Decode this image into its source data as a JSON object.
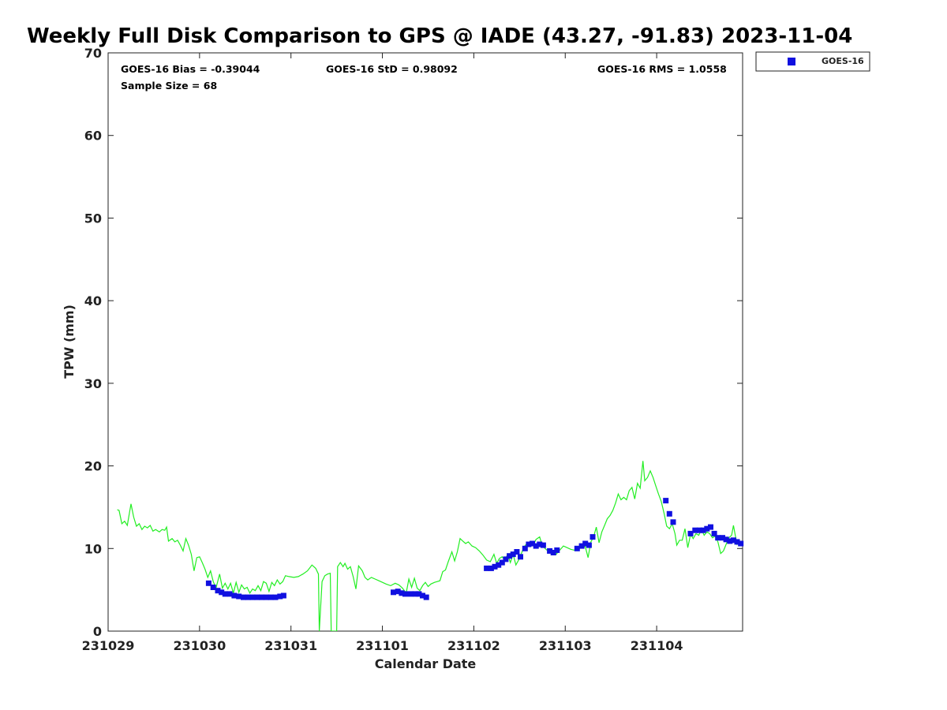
{
  "chart_data": {
    "type": "scatter",
    "title": "Weekly Full Disk Comparison to GPS @ IADE (43.27, -91.83) 2023-11-04",
    "xlabel": "Calendar Date",
    "ylabel": "TPW (mm)",
    "xlim": [
      0,
      6.94
    ],
    "ylim": [
      0,
      70
    ],
    "x_unit": "days",
    "yticks": [
      0,
      10,
      20,
      30,
      40,
      50,
      60,
      70
    ],
    "xticks": [
      {
        "value": 0,
        "label": "231029"
      },
      {
        "value": 1,
        "label": "231030"
      },
      {
        "value": 2,
        "label": "231031"
      },
      {
        "value": 3,
        "label": "231101"
      },
      {
        "value": 4,
        "label": "231102"
      },
      {
        "value": 5,
        "label": "231103"
      },
      {
        "value": 6,
        "label": "231104"
      }
    ],
    "stats": {
      "bias": "GOES-16 Bias = -0.39044",
      "std": "GOES-16 StD = 0.98092",
      "rms": "GOES-16 RMS = 1.0558",
      "sample": "Sample Size = 68"
    },
    "legend": {
      "position": "top-right-outside",
      "entries": [
        "GOES-16"
      ]
    },
    "grid": false,
    "series": [
      {
        "name": "GOES-16",
        "kind": "scatter",
        "color": "#1010e0",
        "points": [
          [
            1.1,
            5.8
          ],
          [
            1.15,
            5.3
          ],
          [
            1.2,
            4.9
          ],
          [
            1.24,
            4.7
          ],
          [
            1.28,
            4.5
          ],
          [
            1.33,
            4.5
          ],
          [
            1.38,
            4.3
          ],
          [
            1.43,
            4.2
          ],
          [
            1.48,
            4.1
          ],
          [
            1.53,
            4.1
          ],
          [
            1.58,
            4.1
          ],
          [
            1.63,
            4.1
          ],
          [
            1.68,
            4.1
          ],
          [
            1.73,
            4.1
          ],
          [
            1.78,
            4.1
          ],
          [
            1.83,
            4.1
          ],
          [
            1.88,
            4.2
          ],
          [
            1.92,
            4.3
          ],
          [
            3.12,
            4.7
          ],
          [
            3.17,
            4.8
          ],
          [
            3.21,
            4.6
          ],
          [
            3.25,
            4.5
          ],
          [
            3.31,
            4.5
          ],
          [
            3.36,
            4.5
          ],
          [
            3.4,
            4.5
          ],
          [
            3.44,
            4.3
          ],
          [
            3.48,
            4.1
          ],
          [
            4.14,
            7.6
          ],
          [
            4.19,
            7.6
          ],
          [
            4.23,
            7.8
          ],
          [
            4.27,
            8.0
          ],
          [
            4.31,
            8.3
          ],
          [
            4.35,
            8.7
          ],
          [
            4.39,
            9.1
          ],
          [
            4.43,
            9.3
          ],
          [
            4.47,
            9.6
          ],
          [
            4.51,
            9.0
          ],
          [
            4.56,
            10.0
          ],
          [
            4.6,
            10.5
          ],
          [
            4.64,
            10.6
          ],
          [
            4.68,
            10.3
          ],
          [
            4.72,
            10.5
          ],
          [
            4.76,
            10.4
          ],
          [
            4.83,
            9.7
          ],
          [
            4.87,
            9.5
          ],
          [
            4.91,
            9.8
          ],
          [
            5.13,
            10.0
          ],
          [
            5.18,
            10.3
          ],
          [
            5.22,
            10.6
          ],
          [
            5.26,
            10.4
          ],
          [
            5.3,
            11.4
          ],
          [
            6.1,
            15.8
          ],
          [
            6.14,
            14.2
          ],
          [
            6.18,
            13.2
          ],
          [
            6.37,
            11.8
          ],
          [
            6.42,
            12.2
          ],
          [
            6.47,
            12.2
          ],
          [
            6.51,
            12.2
          ],
          [
            6.55,
            12.4
          ],
          [
            6.59,
            12.6
          ],
          [
            6.63,
            11.8
          ],
          [
            6.67,
            11.3
          ],
          [
            6.72,
            11.3
          ],
          [
            6.76,
            11.1
          ],
          [
            6.8,
            10.9
          ],
          [
            6.84,
            11.0
          ],
          [
            6.88,
            10.8
          ],
          [
            6.92,
            10.6
          ]
        ]
      },
      {
        "name": "",
        "kind": "line",
        "color": "#22ee22",
        "points": [
          [
            0.1,
            14.7
          ],
          [
            0.12,
            14.6
          ],
          [
            0.15,
            13.0
          ],
          [
            0.18,
            13.3
          ],
          [
            0.21,
            12.8
          ],
          [
            0.25,
            15.4
          ],
          [
            0.28,
            13.8
          ],
          [
            0.31,
            12.7
          ],
          [
            0.34,
            13.0
          ],
          [
            0.37,
            12.3
          ],
          [
            0.4,
            12.7
          ],
          [
            0.43,
            12.5
          ],
          [
            0.46,
            12.8
          ],
          [
            0.49,
            12.1
          ],
          [
            0.52,
            12.3
          ],
          [
            0.56,
            12.0
          ],
          [
            0.59,
            12.3
          ],
          [
            0.62,
            12.2
          ],
          [
            0.64,
            12.6
          ],
          [
            0.66,
            10.9
          ],
          [
            0.7,
            11.2
          ],
          [
            0.73,
            10.8
          ],
          [
            0.76,
            11.0
          ],
          [
            0.79,
            10.4
          ],
          [
            0.82,
            9.7
          ],
          [
            0.85,
            11.2
          ],
          [
            0.88,
            10.4
          ],
          [
            0.91,
            9.3
          ],
          [
            0.94,
            7.3
          ],
          [
            0.97,
            8.9
          ],
          [
            1.0,
            9.0
          ],
          [
            1.03,
            8.3
          ],
          [
            1.06,
            7.5
          ],
          [
            1.09,
            6.5
          ],
          [
            1.12,
            7.3
          ],
          [
            1.15,
            6.0
          ],
          [
            1.18,
            5.2
          ],
          [
            1.22,
            6.9
          ],
          [
            1.25,
            5.2
          ],
          [
            1.28,
            5.8
          ],
          [
            1.31,
            5.1
          ],
          [
            1.34,
            5.8
          ],
          [
            1.37,
            4.6
          ],
          [
            1.4,
            5.9
          ],
          [
            1.43,
            4.7
          ],
          [
            1.46,
            5.6
          ],
          [
            1.49,
            5.1
          ],
          [
            1.52,
            5.3
          ],
          [
            1.55,
            4.6
          ],
          [
            1.58,
            5.1
          ],
          [
            1.61,
            4.9
          ],
          [
            1.64,
            5.5
          ],
          [
            1.67,
            4.9
          ],
          [
            1.7,
            6.0
          ],
          [
            1.73,
            5.8
          ],
          [
            1.76,
            4.8
          ],
          [
            1.79,
            5.9
          ],
          [
            1.82,
            5.5
          ],
          [
            1.85,
            6.2
          ],
          [
            1.88,
            5.7
          ],
          [
            1.91,
            6.0
          ],
          [
            1.94,
            6.7
          ],
          [
            1.98,
            6.6
          ],
          [
            2.03,
            6.5
          ],
          [
            2.08,
            6.6
          ],
          [
            2.13,
            6.9
          ],
          [
            2.18,
            7.3
          ],
          [
            2.23,
            8.0
          ],
          [
            2.27,
            7.6
          ],
          [
            2.3,
            6.9
          ],
          [
            2.31,
            0.0
          ],
          [
            2.34,
            6.0
          ],
          [
            2.37,
            6.7
          ],
          [
            2.4,
            6.9
          ],
          [
            2.43,
            7.0
          ],
          [
            2.44,
            0.0
          ],
          [
            2.5,
            0.0
          ],
          [
            2.51,
            7.8
          ],
          [
            2.54,
            8.3
          ],
          [
            2.57,
            7.8
          ],
          [
            2.59,
            8.2
          ],
          [
            2.62,
            7.5
          ],
          [
            2.65,
            7.8
          ],
          [
            2.68,
            6.6
          ],
          [
            2.71,
            5.1
          ],
          [
            2.74,
            7.9
          ],
          [
            2.78,
            7.3
          ],
          [
            2.81,
            6.5
          ],
          [
            2.84,
            6.2
          ],
          [
            2.88,
            6.5
          ],
          [
            2.92,
            6.3
          ],
          [
            2.96,
            6.1
          ],
          [
            3.0,
            5.9
          ],
          [
            3.04,
            5.7
          ],
          [
            3.09,
            5.5
          ],
          [
            3.14,
            5.8
          ],
          [
            3.18,
            5.6
          ],
          [
            3.22,
            5.2
          ],
          [
            3.26,
            4.6
          ],
          [
            3.29,
            6.3
          ],
          [
            3.32,
            5.3
          ],
          [
            3.35,
            6.4
          ],
          [
            3.38,
            5.2
          ],
          [
            3.41,
            4.9
          ],
          [
            3.44,
            5.5
          ],
          [
            3.47,
            5.9
          ],
          [
            3.5,
            5.4
          ],
          [
            3.53,
            5.7
          ],
          [
            3.57,
            5.9
          ],
          [
            3.6,
            6.0
          ],
          [
            3.63,
            6.1
          ],
          [
            3.66,
            7.2
          ],
          [
            3.69,
            7.4
          ],
          [
            3.72,
            8.4
          ],
          [
            3.76,
            9.6
          ],
          [
            3.79,
            8.5
          ],
          [
            3.82,
            9.6
          ],
          [
            3.85,
            11.2
          ],
          [
            3.88,
            10.9
          ],
          [
            3.91,
            10.6
          ],
          [
            3.94,
            10.8
          ],
          [
            3.98,
            10.3
          ],
          [
            4.02,
            10.1
          ],
          [
            4.06,
            9.7
          ],
          [
            4.1,
            9.2
          ],
          [
            4.14,
            8.6
          ],
          [
            4.18,
            8.4
          ],
          [
            4.22,
            9.3
          ],
          [
            4.25,
            8.2
          ],
          [
            4.28,
            8.8
          ],
          [
            4.31,
            9.0
          ],
          [
            4.34,
            8.6
          ],
          [
            4.37,
            9.3
          ],
          [
            4.4,
            8.3
          ],
          [
            4.43,
            9.3
          ],
          [
            4.46,
            8.0
          ],
          [
            4.49,
            8.6
          ],
          [
            4.52,
            9.4
          ],
          [
            4.55,
            10.2
          ],
          [
            4.58,
            10.6
          ],
          [
            4.62,
            10.7
          ],
          [
            4.65,
            10.4
          ],
          [
            4.68,
            11.1
          ],
          [
            4.72,
            11.4
          ],
          [
            4.75,
            10.3
          ],
          [
            4.78,
            10.0
          ],
          [
            4.82,
            9.6
          ],
          [
            4.86,
            9.7
          ],
          [
            4.9,
            9.3
          ],
          [
            4.94,
            9.8
          ],
          [
            4.98,
            10.3
          ],
          [
            5.02,
            10.1
          ],
          [
            5.06,
            9.9
          ],
          [
            5.1,
            9.8
          ],
          [
            5.14,
            10.1
          ],
          [
            5.18,
            10.4
          ],
          [
            5.22,
            10.2
          ],
          [
            5.25,
            8.9
          ],
          [
            5.28,
            10.8
          ],
          [
            5.31,
            11.4
          ],
          [
            5.34,
            12.6
          ],
          [
            5.37,
            10.7
          ],
          [
            5.4,
            12.0
          ],
          [
            5.43,
            12.8
          ],
          [
            5.46,
            13.6
          ],
          [
            5.49,
            14.0
          ],
          [
            5.52,
            14.6
          ],
          [
            5.55,
            15.5
          ],
          [
            5.58,
            16.6
          ],
          [
            5.61,
            15.9
          ],
          [
            5.64,
            16.2
          ],
          [
            5.67,
            15.9
          ],
          [
            5.7,
            17.0
          ],
          [
            5.73,
            17.4
          ],
          [
            5.76,
            16.0
          ],
          [
            5.79,
            17.9
          ],
          [
            5.82,
            17.3
          ],
          [
            5.85,
            20.6
          ],
          [
            5.87,
            18.2
          ],
          [
            5.9,
            18.6
          ],
          [
            5.93,
            19.4
          ],
          [
            5.96,
            18.6
          ],
          [
            5.99,
            17.6
          ],
          [
            6.02,
            16.6
          ],
          [
            6.05,
            15.7
          ],
          [
            6.08,
            14.3
          ],
          [
            6.11,
            12.7
          ],
          [
            6.14,
            12.4
          ],
          [
            6.17,
            13.0
          ],
          [
            6.2,
            11.8
          ],
          [
            6.22,
            10.4
          ],
          [
            6.25,
            11.0
          ],
          [
            6.28,
            11.0
          ],
          [
            6.31,
            12.4
          ],
          [
            6.34,
            10.1
          ],
          [
            6.37,
            11.7
          ],
          [
            6.4,
            11.2
          ],
          [
            6.43,
            11.8
          ],
          [
            6.46,
            11.6
          ],
          [
            6.49,
            12.3
          ],
          [
            6.52,
            11.6
          ],
          [
            6.55,
            12.0
          ],
          [
            6.58,
            11.8
          ],
          [
            6.61,
            11.3
          ],
          [
            6.64,
            11.5
          ],
          [
            6.67,
            10.8
          ],
          [
            6.7,
            9.4
          ],
          [
            6.73,
            9.7
          ],
          [
            6.76,
            10.5
          ],
          [
            6.79,
            11.3
          ],
          [
            6.82,
            11.6
          ],
          [
            6.84,
            12.8
          ],
          [
            6.86,
            11.6
          ],
          [
            6.88,
            10.5
          ],
          [
            6.91,
            10.9
          ],
          [
            6.94,
            10.7
          ]
        ]
      }
    ]
  }
}
